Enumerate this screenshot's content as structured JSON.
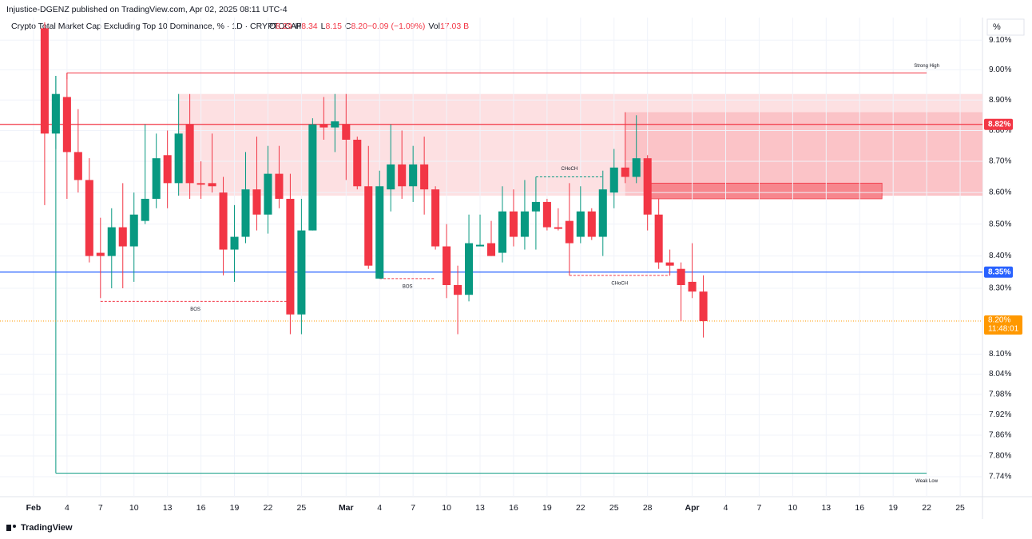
{
  "published": "Injustice-DGENZ published on TradingView.com, Apr 02, 2025 08:11 UTC-4",
  "brand": "TradingView",
  "chart_data": {
    "type": "candlestick",
    "title": "Crypto Total Market Cap Excluding Top 10 Dominance, % · 1D · CRYPTOCAP",
    "ohlc_legend": [
      {
        "label": "O",
        "value": "8.29"
      },
      {
        "label": "H",
        "value": "8.34"
      },
      {
        "label": "L",
        "value": "8.15"
      },
      {
        "label": "C",
        "value": "8.20"
      },
      {
        "label": "",
        "value": "−0.09 (−1.09%)"
      },
      {
        "label": "Vol",
        "value": "17.03 B"
      }
    ],
    "y_unit": "%",
    "log_scale": true,
    "grid": true,
    "up_color": "#089981",
    "down_color": "#f23645",
    "x": [
      "2025-02-02",
      "2025-02-03",
      "2025-02-04",
      "2025-02-05",
      "2025-02-06",
      "2025-02-07",
      "2025-02-08",
      "2025-02-09",
      "2025-02-10",
      "2025-02-11",
      "2025-02-12",
      "2025-02-13",
      "2025-02-14",
      "2025-02-15",
      "2025-02-16",
      "2025-02-17",
      "2025-02-18",
      "2025-02-19",
      "2025-02-20",
      "2025-02-21",
      "2025-02-22",
      "2025-02-23",
      "2025-02-24",
      "2025-02-25",
      "2025-02-26",
      "2025-02-27",
      "2025-02-28",
      "2025-03-01",
      "2025-03-02",
      "2025-03-03",
      "2025-03-04",
      "2025-03-05",
      "2025-03-06",
      "2025-03-07",
      "2025-03-08",
      "2025-03-09",
      "2025-03-10",
      "2025-03-11",
      "2025-03-12",
      "2025-03-13",
      "2025-03-14",
      "2025-03-15",
      "2025-03-16",
      "2025-03-17",
      "2025-03-18",
      "2025-03-19",
      "2025-03-20",
      "2025-03-21",
      "2025-03-22",
      "2025-03-23",
      "2025-03-24",
      "2025-03-25",
      "2025-03-26",
      "2025-03-27",
      "2025-03-28",
      "2025-03-29",
      "2025-03-30",
      "2025-03-31",
      "2025-04-01",
      "2025-04-02"
    ],
    "open": [
      9.14,
      8.79,
      8.91,
      8.73,
      8.64,
      8.41,
      8.4,
      8.49,
      8.43,
      8.51,
      8.58,
      8.72,
      8.63,
      8.82,
      8.63,
      8.63,
      8.6,
      8.42,
      8.46,
      8.61,
      8.53,
      8.66,
      8.58,
      8.22,
      8.48,
      8.82,
      8.81,
      8.82,
      8.77,
      8.62,
      8.33,
      8.61,
      8.69,
      8.62,
      8.69,
      8.61,
      8.43,
      8.31,
      8.28,
      8.43,
      8.44,
      8.41,
      8.54,
      8.46,
      8.54,
      8.57,
      8.49,
      8.51,
      8.46,
      8.54,
      8.46,
      8.6,
      8.68,
      8.65,
      8.71,
      8.53,
      8.38,
      8.36,
      8.32,
      8.29
    ],
    "high": [
      9.16,
      8.98,
      8.99,
      8.87,
      8.71,
      8.52,
      8.55,
      8.63,
      8.6,
      8.82,
      8.79,
      8.8,
      8.92,
      8.92,
      8.7,
      8.79,
      8.65,
      8.56,
      8.73,
      8.78,
      8.75,
      8.75,
      8.66,
      8.58,
      8.84,
      8.91,
      8.92,
      8.92,
      8.78,
      8.75,
      8.67,
      8.82,
      8.8,
      8.75,
      8.78,
      8.62,
      8.5,
      8.37,
      8.53,
      8.53,
      8.51,
      8.62,
      8.61,
      8.64,
      8.65,
      8.58,
      8.55,
      8.63,
      8.62,
      8.55,
      8.67,
      8.74,
      8.86,
      8.85,
      8.72,
      8.58,
      8.42,
      8.38,
      8.44,
      8.34
    ],
    "low": [
      8.56,
      8.74,
      8.58,
      8.6,
      8.38,
      8.27,
      8.3,
      8.3,
      8.32,
      8.5,
      8.55,
      8.55,
      8.59,
      8.58,
      8.58,
      8.6,
      8.34,
      8.32,
      8.44,
      8.48,
      8.47,
      8.55,
      8.16,
      8.16,
      8.48,
      8.77,
      8.73,
      8.64,
      8.61,
      8.36,
      8.33,
      8.54,
      8.58,
      8.57,
      8.53,
      8.42,
      8.27,
      8.16,
      8.26,
      8.43,
      8.4,
      8.38,
      8.43,
      8.42,
      8.42,
      8.48,
      8.48,
      8.34,
      8.44,
      8.45,
      8.4,
      8.55,
      8.63,
      8.63,
      8.48,
      8.36,
      8.34,
      8.2,
      8.27,
      8.15
    ],
    "close": [
      8.79,
      8.92,
      8.73,
      8.64,
      8.4,
      8.4,
      8.49,
      8.43,
      8.53,
      8.58,
      8.71,
      8.63,
      8.79,
      8.63,
      8.625,
      8.62,
      8.42,
      8.46,
      8.61,
      8.53,
      8.66,
      8.58,
      8.22,
      8.48,
      8.82,
      8.81,
      8.83,
      8.77,
      8.62,
      8.37,
      8.62,
      8.69,
      8.62,
      8.69,
      8.61,
      8.43,
      8.31,
      8.28,
      8.44,
      8.435,
      8.4,
      8.54,
      8.46,
      8.54,
      8.57,
      8.49,
      8.485,
      8.44,
      8.54,
      8.46,
      8.61,
      8.68,
      8.65,
      8.71,
      8.53,
      8.38,
      8.37,
      8.31,
      8.29,
      8.2
    ],
    "xlim": [
      "2025-01-29",
      "2025-04-27"
    ],
    "ylim": [
      7.683,
      9.16
    ],
    "yticks": [
      {
        "value": 9.1,
        "label": "9.10%"
      },
      {
        "value": 9.0,
        "label": "9.00%"
      },
      {
        "value": 8.9,
        "label": "8.90%"
      },
      {
        "value": 8.8,
        "label": "8.80%"
      },
      {
        "value": 8.7,
        "label": "8.70%"
      },
      {
        "value": 8.6,
        "label": "8.60%"
      },
      {
        "value": 8.5,
        "label": "8.50%"
      },
      {
        "value": 8.4,
        "label": "8.40%"
      },
      {
        "value": 8.3,
        "label": "8.30%"
      },
      {
        "value": 8.1,
        "label": "8.10%"
      },
      {
        "value": 8.04,
        "label": "8.04%"
      },
      {
        "value": 7.98,
        "label": "7.98%"
      },
      {
        "value": 7.92,
        "label": "7.92%"
      },
      {
        "value": 7.86,
        "label": "7.86%"
      },
      {
        "value": 7.8,
        "label": "7.80%"
      },
      {
        "value": 7.74,
        "label": "7.74%"
      }
    ],
    "xticks": [
      {
        "value": "2025-02-01",
        "label": "Feb"
      },
      {
        "value": "2025-02-04",
        "label": "4"
      },
      {
        "value": "2025-02-07",
        "label": "7"
      },
      {
        "value": "2025-02-10",
        "label": "10"
      },
      {
        "value": "2025-02-13",
        "label": "13"
      },
      {
        "value": "2025-02-16",
        "label": "16"
      },
      {
        "value": "2025-02-19",
        "label": "19"
      },
      {
        "value": "2025-02-22",
        "label": "22"
      },
      {
        "value": "2025-02-25",
        "label": "25"
      },
      {
        "value": "2025-03-01",
        "label": "Mar"
      },
      {
        "value": "2025-03-04",
        "label": "4"
      },
      {
        "value": "2025-03-07",
        "label": "7"
      },
      {
        "value": "2025-03-10",
        "label": "10"
      },
      {
        "value": "2025-03-13",
        "label": "13"
      },
      {
        "value": "2025-03-16",
        "label": "16"
      },
      {
        "value": "2025-03-19",
        "label": "19"
      },
      {
        "value": "2025-03-22",
        "label": "22"
      },
      {
        "value": "2025-03-25",
        "label": "25"
      },
      {
        "value": "2025-03-28",
        "label": "28"
      },
      {
        "value": "2025-04-01",
        "label": "Apr"
      },
      {
        "value": "2025-04-04",
        "label": "4"
      },
      {
        "value": "2025-04-07",
        "label": "7"
      },
      {
        "value": "2025-04-10",
        "label": "10"
      },
      {
        "value": "2025-04-13",
        "label": "13"
      },
      {
        "value": "2025-04-16",
        "label": "16"
      },
      {
        "value": "2025-04-19",
        "label": "19"
      },
      {
        "value": "2025-04-22",
        "label": "22"
      },
      {
        "value": "2025-04-25",
        "label": "25"
      }
    ],
    "zones": [
      {
        "start": "2025-02-14",
        "top": 8.92,
        "bottom": 8.59,
        "color": "#fde0e2"
      },
      {
        "start": "2025-03-26",
        "top": 8.86,
        "bottom": 8.59,
        "color": "#fbc3c7"
      },
      {
        "start": "2025-03-28",
        "end": "2025-04-18",
        "top": 8.63,
        "bottom": 8.58,
        "color": "#f7868d"
      }
    ],
    "levels": [
      {
        "value": 8.82,
        "label": "8.82%",
        "color": "#f23645"
      },
      {
        "value": 8.35,
        "label": "8.35%",
        "color": "#2962ff"
      }
    ],
    "last_price": {
      "value": 8.2,
      "label": "8.20%",
      "countdown": "11:48:01",
      "color": "#ff9800"
    },
    "swing_lines": [
      {
        "name": "Strong High",
        "value": 8.99,
        "start": "2025-02-04",
        "end": "2025-04-22",
        "color": "#f23645"
      },
      {
        "name": "Weak Low",
        "value": 7.75,
        "start": "2025-02-03",
        "end": "2025-04-22",
        "color": "#089981",
        "from": 8.98
      }
    ],
    "structure": [
      {
        "name": "BOS",
        "value": 8.26,
        "start": "2025-02-07",
        "end": "2025-02-24",
        "color": "#f23645"
      },
      {
        "name": "BOS",
        "value": 8.33,
        "start": "2025-03-04",
        "end": "2025-03-09",
        "color": "#f23645"
      },
      {
        "name": "CHoCH",
        "value": 8.65,
        "start": "2025-03-18",
        "end": "2025-03-24",
        "color": "#089981"
      },
      {
        "name": "CHoCH",
        "value": 8.34,
        "start": "2025-03-21",
        "end": "2025-03-30",
        "color": "#f23645"
      }
    ]
  }
}
